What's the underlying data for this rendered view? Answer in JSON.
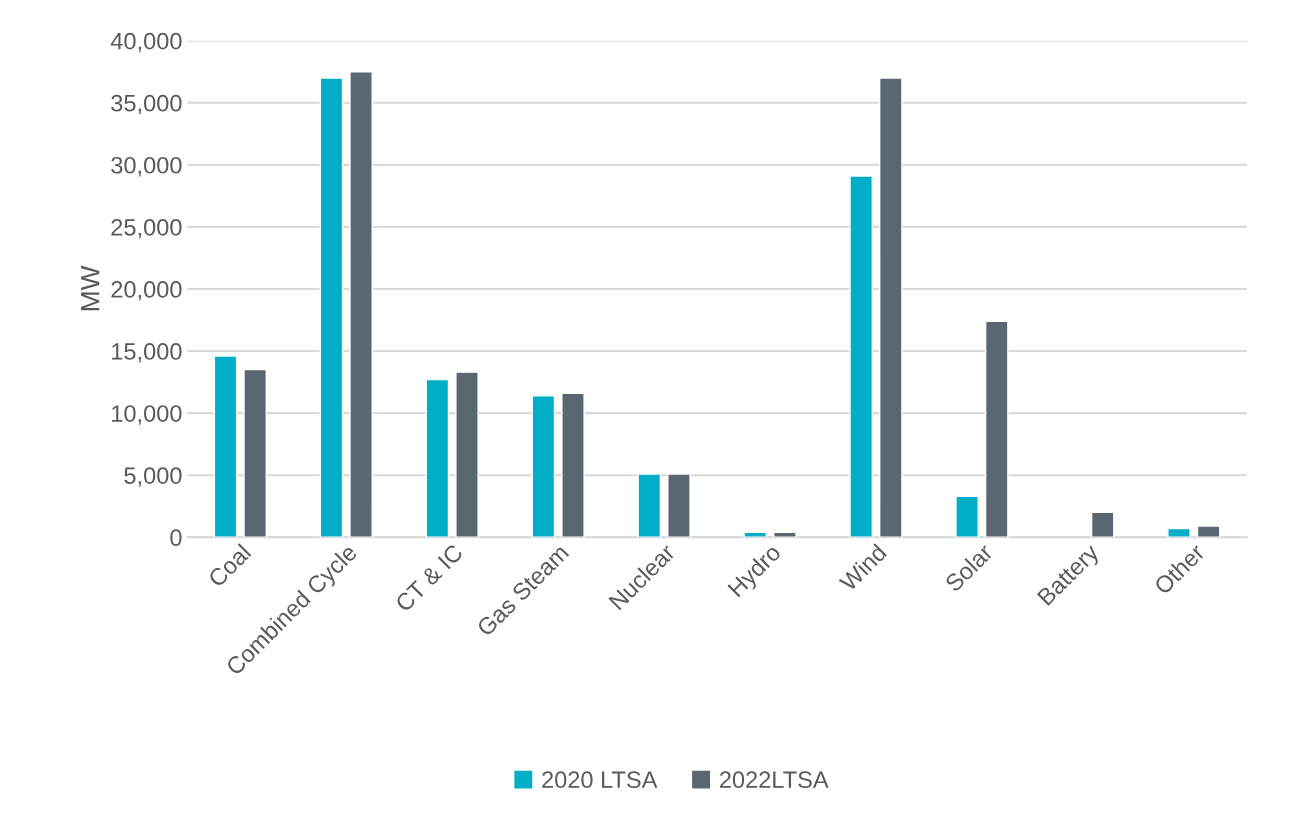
{
  "chart_data": {
    "type": "bar",
    "ylabel": "MW",
    "categories": [
      "Coal",
      "Combined Cycle",
      "CT & IC",
      "Gas Steam",
      "Nuclear",
      "Hydro",
      "Wind",
      "Solar",
      "Battery",
      "Other"
    ],
    "series": [
      {
        "name": "2020 LTSA",
        "color": "#00aec7",
        "values": [
          14600,
          37000,
          12700,
          11400,
          5100,
          400,
          29100,
          3300,
          null,
          700
        ]
      },
      {
        "name": "2022LTSA",
        "color": "#5a6670",
        "values": [
          13500,
          37500,
          13300,
          11600,
          5100,
          400,
          37000,
          17400,
          2000,
          900
        ]
      }
    ],
    "ylim": [
      0,
      40000
    ],
    "yticks": [
      {
        "value": 0,
        "label": "0"
      },
      {
        "value": 5000,
        "label": "5,000"
      },
      {
        "value": 10000,
        "label": "10,000"
      },
      {
        "value": 15000,
        "label": "15,000"
      },
      {
        "value": 20000,
        "label": "20,000"
      },
      {
        "value": 25000,
        "label": "25,000"
      },
      {
        "value": 30000,
        "label": "30,000"
      },
      {
        "value": 35000,
        "label": "35,000"
      },
      {
        "value": 40000,
        "label": "40,000"
      }
    ],
    "grid": "y",
    "legend": "bottom"
  }
}
